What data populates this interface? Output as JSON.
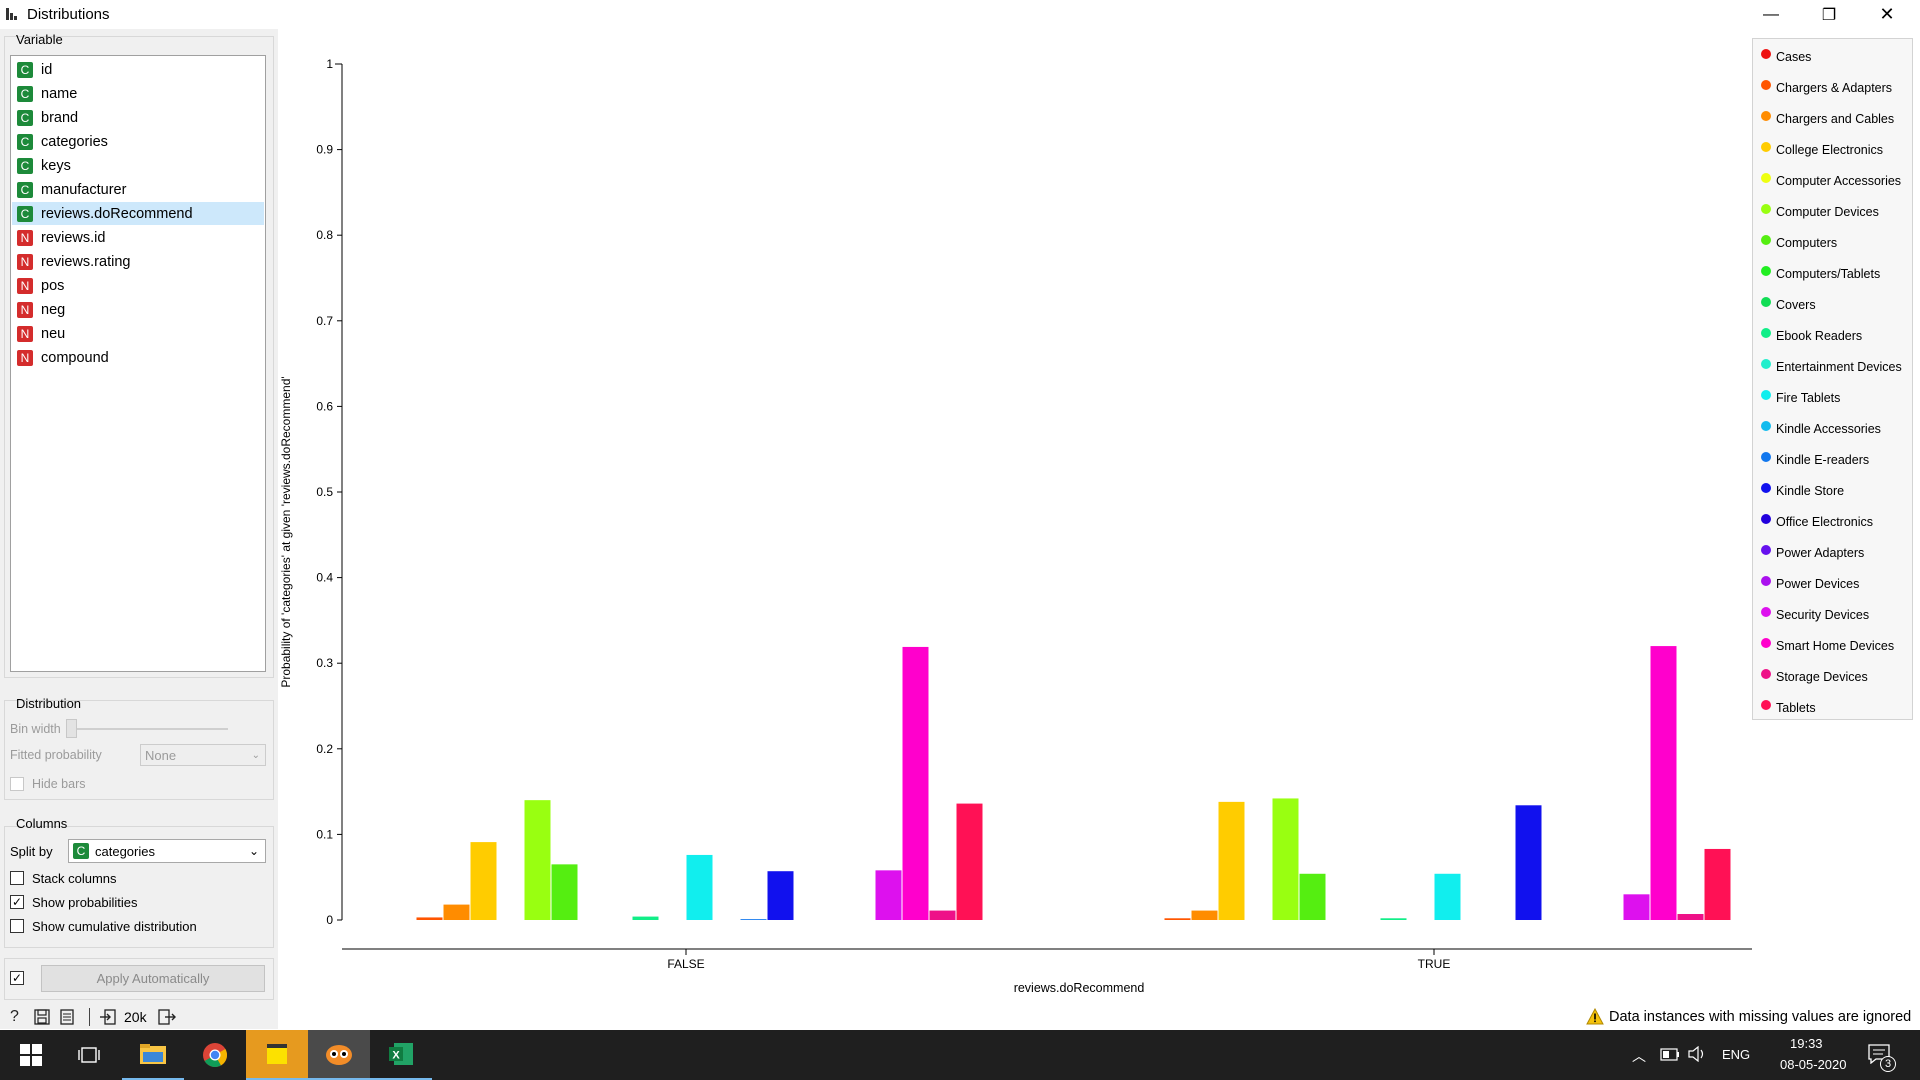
{
  "window": {
    "title": "Distributions",
    "minimize": "—",
    "restore": "❐",
    "close": "✕"
  },
  "variables": {
    "group_title": "Variable",
    "items": [
      {
        "type": "C",
        "name": "id"
      },
      {
        "type": "C",
        "name": "name"
      },
      {
        "type": "C",
        "name": "brand"
      },
      {
        "type": "C",
        "name": "categories"
      },
      {
        "type": "C",
        "name": "keys"
      },
      {
        "type": "C",
        "name": "manufacturer"
      },
      {
        "type": "C",
        "name": "reviews.doRecommend",
        "selected": true
      },
      {
        "type": "N",
        "name": "reviews.id"
      },
      {
        "type": "N",
        "name": "reviews.rating"
      },
      {
        "type": "N",
        "name": "pos"
      },
      {
        "type": "N",
        "name": "neg"
      },
      {
        "type": "N",
        "name": "neu"
      },
      {
        "type": "N",
        "name": "compound"
      }
    ]
  },
  "distribution": {
    "group_title": "Distribution",
    "bin_width_label": "Bin width",
    "fitted_label": "Fitted probability",
    "fitted_value": "None",
    "hide_bars_label": "Hide bars"
  },
  "columns": {
    "group_title": "Columns",
    "split_by_label": "Split by",
    "split_by_badge": "C",
    "split_by_value": "categories",
    "stack_label": "Stack columns",
    "stack_checked": false,
    "probs_label": "Show probabilities",
    "probs_checked": true,
    "cumulative_label": "Show cumulative distribution",
    "cumulative_checked": false
  },
  "apply": {
    "label": "Apply Automatically",
    "checked": true
  },
  "bottom": {
    "count": "20k",
    "warning": "Data instances with missing values are ignored"
  },
  "taskbar": {
    "time": "19:33",
    "date": "08-05-2020",
    "lang": "ENG",
    "notifications": "3"
  },
  "chart_data": {
    "type": "bar",
    "xlabel": "reviews.doRecommend",
    "ylabel": "Probability of 'categories' at given 'reviews.doRecommend'",
    "ylim": [
      0,
      1
    ],
    "yticks": [
      0,
      0.1,
      0.2,
      0.3,
      0.4,
      0.5,
      0.6,
      0.7,
      0.8,
      0.9,
      1
    ],
    "categories": [
      "FALSE",
      "TRUE"
    ],
    "series": [
      {
        "name": "Cases",
        "color": "#ee1111",
        "values": [
          0,
          0
        ]
      },
      {
        "name": "Chargers & Adapters",
        "color": "#ff5500",
        "values": [
          0.003,
          0.002
        ]
      },
      {
        "name": "Chargers and Cables",
        "color": "#ff8c00",
        "values": [
          0.018,
          0.011
        ]
      },
      {
        "name": "College Electronics",
        "color": "#ffcc00",
        "values": [
          0.091,
          0.138
        ]
      },
      {
        "name": "Computer Accessories",
        "color": "#eeff11",
        "values": [
          0,
          0
        ]
      },
      {
        "name": "Computer Devices",
        "color": "#99ff11",
        "values": [
          0.14,
          0.142
        ]
      },
      {
        "name": "Computers",
        "color": "#55ee11",
        "values": [
          0.065,
          0.054
        ]
      },
      {
        "name": "Computers/Tablets",
        "color": "#22ee22",
        "values": [
          0,
          0
        ]
      },
      {
        "name": "Covers",
        "color": "#11dd55",
        "values": [
          0,
          0
        ]
      },
      {
        "name": "Ebook Readers",
        "color": "#11ee88",
        "values": [
          0.004,
          0.002
        ]
      },
      {
        "name": "Entertainment Devices",
        "color": "#22eecc",
        "values": [
          0,
          0
        ]
      },
      {
        "name": "Fire Tablets",
        "color": "#11eeee",
        "values": [
          0.076,
          0.054
        ]
      },
      {
        "name": "Kindle Accessories",
        "color": "#11bbee",
        "values": [
          0,
          0
        ]
      },
      {
        "name": "Kindle E-readers",
        "color": "#1177ee",
        "values": [
          0.001,
          0
        ]
      },
      {
        "name": "Kindle Store",
        "color": "#1111ee",
        "values": [
          0.057,
          0.134
        ]
      },
      {
        "name": "Office Electronics",
        "color": "#2200dd",
        "values": [
          0,
          0
        ]
      },
      {
        "name": "Power Adapters",
        "color": "#6611ee",
        "values": [
          0,
          0
        ]
      },
      {
        "name": "Power Devices",
        "color": "#aa11ee",
        "values": [
          0,
          0
        ]
      },
      {
        "name": "Security Devices",
        "color": "#dd11ee",
        "values": [
          0.058,
          0.03
        ]
      },
      {
        "name": "Smart Home Devices",
        "color": "#ff00cc",
        "values": [
          0.319,
          0.32
        ]
      },
      {
        "name": "Storage Devices",
        "color": "#ee1188",
        "values": [
          0.011,
          0.007
        ]
      },
      {
        "name": "Tablets",
        "color": "#ff1155",
        "values": [
          0.136,
          0.083
        ]
      }
    ]
  }
}
